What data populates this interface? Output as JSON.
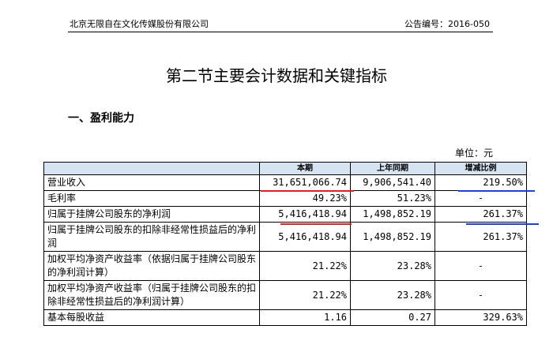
{
  "header": {
    "company": "北京无限自在文化传媒股份有限公司",
    "announcement_no": "公告编号：2016-050"
  },
  "title": "第二节主要会计数据和关键指标",
  "section_heading": "一、盈利能力",
  "unit": "单位：元",
  "table": {
    "columns": [
      "",
      "本期",
      "上年同期",
      "增减比例"
    ],
    "rows": [
      {
        "item": "营业收入",
        "current": "31,651,066.74",
        "prior": "9,906,541.40",
        "change": "219.50%"
      },
      {
        "item": "毛利率",
        "current": "49.23%",
        "prior": "51.23%",
        "change": "-"
      },
      {
        "item": "归属于挂牌公司股东的净利润",
        "current": "5,416,418.94",
        "prior": "1,498,852.19",
        "change": "261.37%"
      },
      {
        "item": "归属于挂牌公司股东的扣除非经常性损益后的净利润",
        "current": "5,416,418.94",
        "prior": "1,498,852.19",
        "change": "261.37%"
      },
      {
        "item": "加权平均净资产收益率（依据归属于挂牌公司股东的净利润计算）",
        "current": "21.22%",
        "prior": "23.28%",
        "change": "-"
      },
      {
        "item": "加权平均净资产收益率（归属于挂牌公司股东的扣除非经常性损益后的净利润计算）",
        "current": "21.22%",
        "prior": "23.28%",
        "change": "-"
      },
      {
        "item": "基本每股收益",
        "current": "1.16",
        "prior": "0.27",
        "change": "329.63%"
      }
    ]
  },
  "annotation_colors": {
    "red": "#e02020",
    "blue": "#1e3fd8"
  }
}
